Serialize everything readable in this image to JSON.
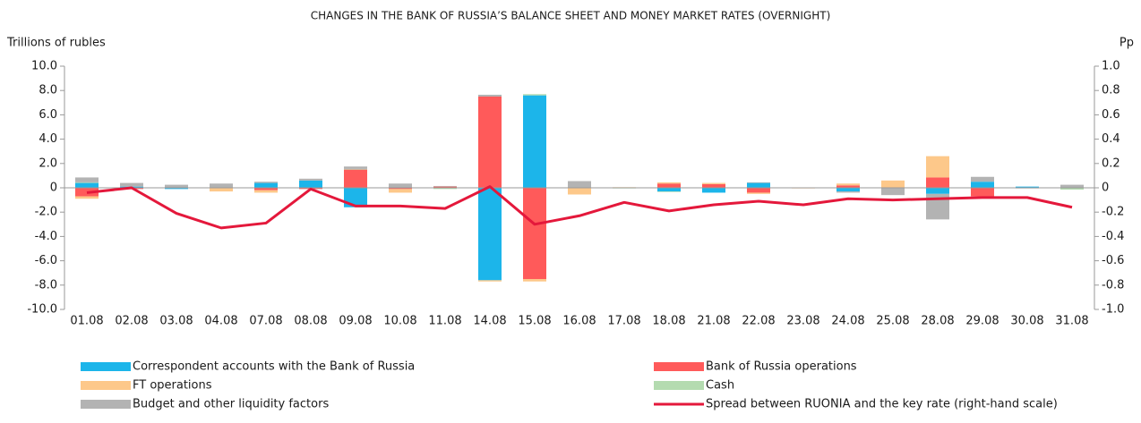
{
  "chart_data": {
    "type": "bar-line",
    "title": "CHANGES IN THE BANK OF RUSSIA’S BALANCE SHEET AND MONEY MARKET RATES (OVERNIGHT)",
    "y_label": "Trillions of rubles",
    "y2_label": "Pp",
    "categories": [
      "01.08",
      "02.08",
      "03.08",
      "04.08",
      "07.08",
      "08.08",
      "09.08",
      "10.08",
      "11.08",
      "14.08",
      "15.08",
      "16.08",
      "17.08",
      "18.08",
      "21.08",
      "22.08",
      "23.08",
      "24.08",
      "25.08",
      "28.08",
      "29.08",
      "30.08",
      "31.08"
    ],
    "ylim": [
      -10,
      10
    ],
    "yticks": [
      {
        "value": -10,
        "label": "-10.0"
      },
      {
        "value": -8,
        "label": "-8.0"
      },
      {
        "value": -6,
        "label": "-6.0"
      },
      {
        "value": -4,
        "label": "-4.0"
      },
      {
        "value": -2,
        "label": "-2.0"
      },
      0,
      {
        "value": 2,
        "label": "2.0"
      },
      {
        "value": 4,
        "label": "4.0"
      },
      {
        "value": 6,
        "label": "6.0"
      },
      {
        "value": 8,
        "label": "8.0"
      },
      {
        "value": 10,
        "label": "10.0"
      }
    ],
    "y2lim": [
      -1,
      1
    ],
    "y2ticks": [
      {
        "value": -1,
        "label": "-1.0"
      },
      {
        "value": -0.8,
        "label": "-0.8"
      },
      {
        "value": -0.6,
        "label": "-0.6"
      },
      {
        "value": -0.4,
        "label": "-0.4"
      },
      {
        "value": -0.2,
        "label": "-0.2"
      },
      0,
      {
        "value": 0.2,
        "label": "0.2"
      },
      {
        "value": 0.4,
        "label": "0.4"
      },
      {
        "value": 0.6,
        "label": "0.6"
      },
      {
        "value": 0.8,
        "label": "0.8"
      },
      {
        "value": 1,
        "label": "1.0"
      }
    ],
    "series": [
      {
        "name": "Correspondent accounts with the Bank of Russia",
        "type": "bar",
        "color": "#1cb5ea",
        "values": [
          0.4,
          0.1,
          -0.1,
          0,
          0.4,
          0.6,
          -1.6,
          0,
          0,
          -7.6,
          7.6,
          0,
          0,
          -0.3,
          -0.4,
          0.4,
          0,
          -0.3,
          0,
          -0.5,
          0.5,
          0.1,
          0
        ]
      },
      {
        "name": "Bank of Russia operations",
        "type": "bar",
        "color": "#ff5a5a",
        "values": [
          -0.7,
          -0.1,
          0,
          0,
          -0.2,
          -0.1,
          1.5,
          -0.1,
          0.1,
          7.5,
          -7.5,
          0,
          0,
          0.35,
          0.3,
          -0.4,
          0,
          0.2,
          0,
          0.85,
          -0.7,
          0,
          0
        ]
      },
      {
        "name": "FT operations",
        "type": "bar",
        "color": "#fdc88a",
        "values": [
          -0.2,
          0,
          0,
          -0.3,
          -0.2,
          0,
          0,
          -0.3,
          0,
          -0.1,
          -0.2,
          -0.55,
          0.05,
          0.1,
          0.1,
          -0.1,
          -0.05,
          0.15,
          0.6,
          1.75,
          0,
          0,
          0
        ]
      },
      {
        "name": "Cash",
        "type": "bar",
        "color": "#b4dbb0",
        "values": [
          0.05,
          0,
          0,
          0,
          0,
          0,
          0.05,
          0,
          -0.1,
          0,
          0.1,
          0,
          -0.05,
          -0.05,
          0,
          0,
          0,
          0,
          0,
          0,
          0,
          0,
          -0.15
        ]
      },
      {
        "name": "Budget and other liquidity factors",
        "type": "bar",
        "color": "#b3b3b3",
        "values": [
          0.4,
          0.3,
          0.25,
          0.35,
          0.1,
          0.15,
          0.2,
          0.35,
          0.05,
          0.15,
          0,
          0.55,
          0,
          0,
          0,
          0.05,
          0,
          -0.1,
          -0.6,
          -2.1,
          0.4,
          -0.05,
          0.25
        ]
      },
      {
        "name": "Spread between RUONIA and the key rate (right-hand scale)",
        "type": "line",
        "axis": "y2",
        "color": "#e4183b",
        "values": [
          -0.04,
          0,
          -0.21,
          -0.33,
          -0.29,
          -0.01,
          -0.15,
          -0.15,
          -0.17,
          0.01,
          -0.3,
          -0.23,
          -0.12,
          -0.19,
          -0.14,
          -0.11,
          -0.14,
          -0.09,
          -0.1,
          -0.09,
          -0.08,
          -0.08,
          -0.16
        ]
      }
    ]
  }
}
